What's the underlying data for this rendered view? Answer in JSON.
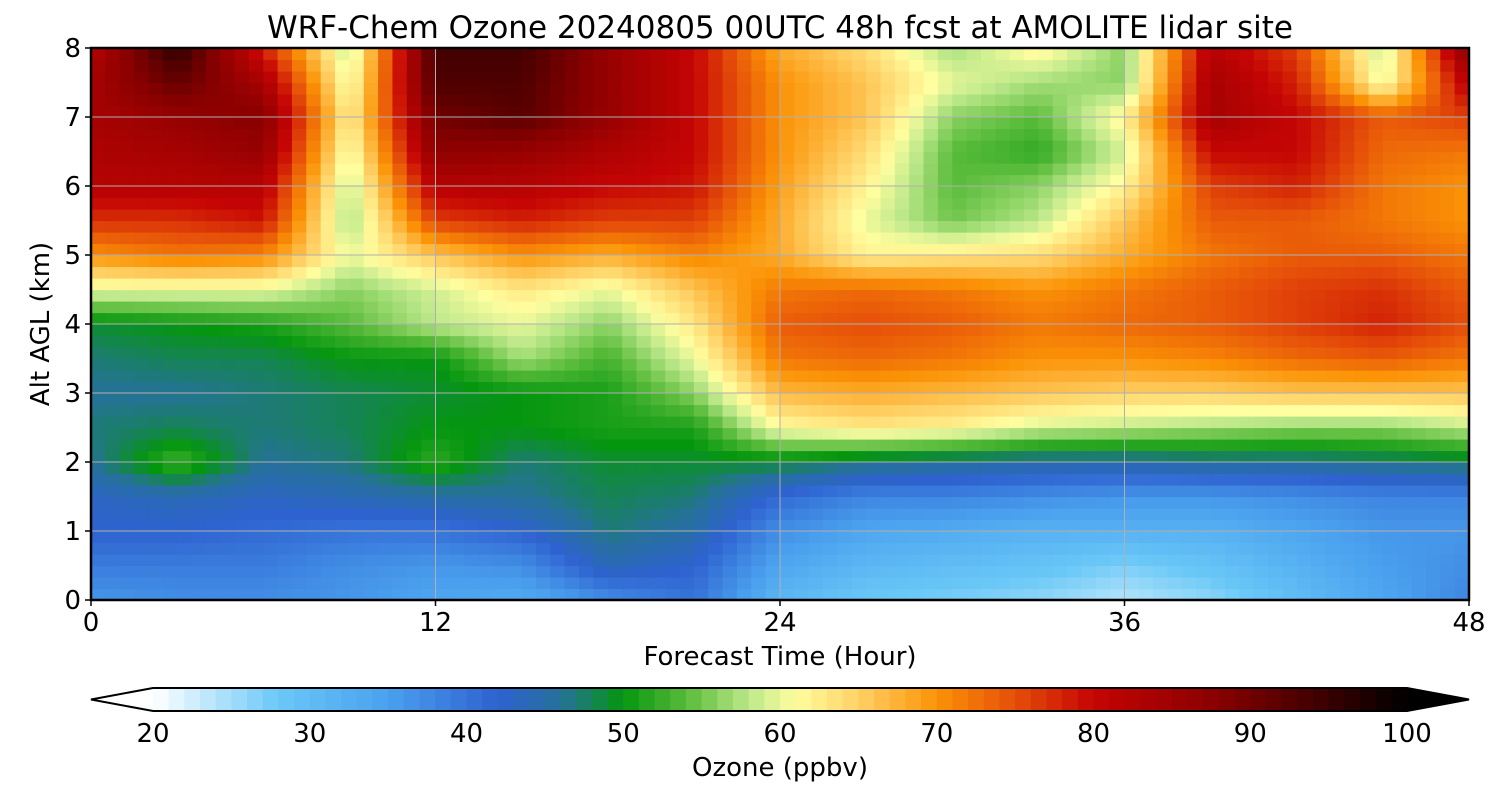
{
  "chart_data": {
    "type": "heatmap",
    "title": "WRF-Chem Ozone  20240805 00UTC 48h fcst at AMOLITE lidar site",
    "xlabel": "Forecast Time (Hour)",
    "ylabel": "Alt AGL (km)",
    "xlim": [
      0,
      48
    ],
    "ylim": [
      0,
      8
    ],
    "xticks": [
      0,
      12,
      24,
      36,
      48
    ],
    "yticks": [
      0,
      1,
      2,
      3,
      4,
      5,
      6,
      7,
      8
    ],
    "grid": true,
    "x": [
      0,
      3,
      6,
      9,
      12,
      15,
      18,
      21,
      24,
      27,
      30,
      33,
      36,
      39,
      42,
      45,
      48
    ],
    "y": [
      0,
      0.5,
      1,
      1.5,
      2,
      2.5,
      3,
      3.5,
      4,
      4.5,
      5,
      5.5,
      6,
      6.5,
      7,
      7.5,
      8
    ],
    "z": [
      [
        36,
        37,
        37,
        36,
        34,
        33,
        37,
        40,
        31,
        28,
        27,
        26,
        24,
        26,
        30,
        34,
        38
      ],
      [
        39,
        39,
        39,
        37,
        36,
        37,
        44,
        42,
        34,
        31,
        30,
        29,
        27,
        29,
        32,
        35,
        37
      ],
      [
        42,
        42,
        41,
        40,
        40,
        42,
        47,
        45,
        37,
        34,
        33,
        32,
        32,
        32,
        34,
        36,
        36
      ],
      [
        43,
        44,
        43,
        44,
        45,
        46,
        48,
        47,
        41,
        38,
        38,
        37,
        36,
        36,
        37,
        38,
        38
      ],
      [
        46,
        53,
        46,
        47,
        52,
        47,
        49,
        49,
        49,
        47,
        46,
        45,
        45,
        46,
        46,
        47,
        48
      ],
      [
        47,
        48,
        47,
        48,
        50,
        50,
        51,
        51,
        61,
        63,
        62,
        59,
        58,
        57,
        56,
        56,
        58
      ],
      [
        46,
        46,
        47,
        48,
        49,
        50,
        51,
        56,
        67,
        68,
        67,
        66,
        65,
        65,
        66,
        66,
        66
      ],
      [
        47,
        48,
        48,
        50,
        50,
        57,
        53,
        60,
        72,
        73,
        72,
        70,
        70,
        71,
        73,
        74,
        72
      ],
      [
        49,
        50,
        51,
        54,
        58,
        60,
        56,
        63,
        74,
        75,
        74,
        72,
        73,
        74,
        76,
        78,
        75
      ],
      [
        60,
        60,
        60,
        56,
        59,
        63,
        60,
        66,
        72,
        73,
        72,
        70,
        72,
        74,
        76,
        77,
        74
      ],
      [
        70,
        72,
        71,
        60,
        66,
        70,
        68,
        71,
        68,
        62,
        63,
        64,
        68,
        72,
        74,
        74,
        72
      ],
      [
        77,
        77,
        79,
        57,
        76,
        78,
        76,
        76,
        68,
        60,
        55,
        58,
        66,
        74,
        74,
        72,
        70
      ],
      [
        82,
        82,
        82,
        58,
        82,
        82,
        80,
        79,
        69,
        62,
        54,
        56,
        62,
        76,
        78,
        72,
        70
      ],
      [
        83,
        84,
        86,
        60,
        87,
        86,
        83,
        80,
        70,
        64,
        54,
        52,
        59,
        80,
        80,
        73,
        72
      ],
      [
        84,
        86,
        88,
        62,
        90,
        92,
        86,
        80,
        70,
        66,
        56,
        54,
        62,
        84,
        80,
        74,
        76
      ],
      [
        84,
        91,
        84,
        60,
        93,
        93,
        86,
        80,
        70,
        66,
        60,
        57,
        56,
        84,
        78,
        60,
        82
      ],
      [
        82,
        96,
        78,
        58,
        94,
        94,
        86,
        80,
        68,
        64,
        57,
        62,
        56,
        82,
        76,
        58,
        88
      ]
    ],
    "colorbar": {
      "label": "Ozone  (ppbv)",
      "min": 20,
      "max": 100,
      "ticks": [
        20,
        30,
        40,
        50,
        60,
        70,
        80,
        90,
        100
      ],
      "extend": "both",
      "colors": [
        {
          "value": 20,
          "color": "#ffffff"
        },
        {
          "value": 28,
          "color": "#6ac8f7"
        },
        {
          "value": 35,
          "color": "#4aa0ee"
        },
        {
          "value": 42,
          "color": "#2e62d0"
        },
        {
          "value": 46,
          "color": "#26719a"
        },
        {
          "value": 50,
          "color": "#05960f"
        },
        {
          "value": 54,
          "color": "#58bb3a"
        },
        {
          "value": 58,
          "color": "#bce88a"
        },
        {
          "value": 61,
          "color": "#fffea0"
        },
        {
          "value": 65,
          "color": "#ffd166"
        },
        {
          "value": 70,
          "color": "#fb9306"
        },
        {
          "value": 75,
          "color": "#e54e09"
        },
        {
          "value": 80,
          "color": "#c50404"
        },
        {
          "value": 88,
          "color": "#870000"
        },
        {
          "value": 95,
          "color": "#380000"
        },
        {
          "value": 100,
          "color": "#000000"
        }
      ]
    }
  }
}
